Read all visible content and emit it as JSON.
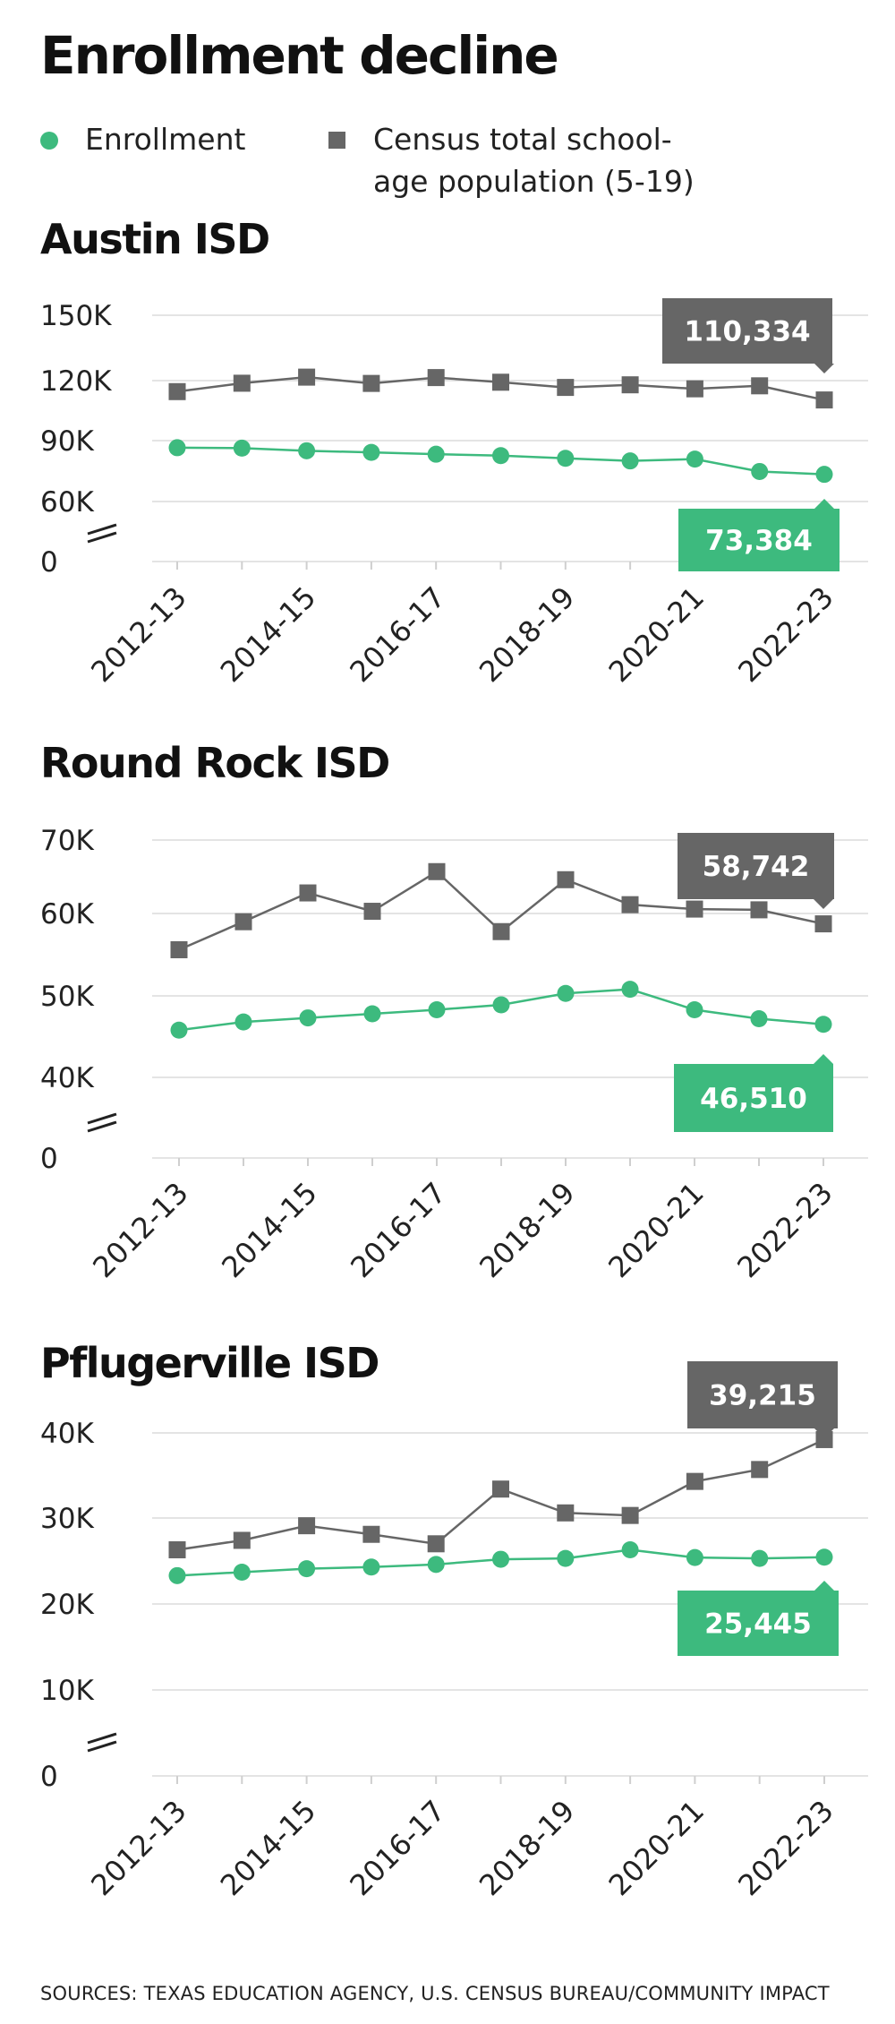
{
  "title": "Enrollment decline",
  "legend": {
    "enrollment": "Enrollment",
    "census": "Census total school-age population (5-19)"
  },
  "colors": {
    "enrollment": "#3dba7e",
    "census": "#666666",
    "grid": "#e4e4e4"
  },
  "sources": "SOURCES: TEXAS EDUCATION AGENCY, U.S. CENSUS BUREAU/COMMUNITY IMPACT",
  "chart_data": [
    {
      "type": "line",
      "title": "Austin ISD",
      "x": [
        "2012-13",
        "2013-14",
        "2014-15",
        "2015-16",
        "2016-17",
        "2017-18",
        "2018-19",
        "2019-20",
        "2020-21",
        "2021-22",
        "2022-23"
      ],
      "x_tick_labels": [
        "2012-13",
        "2014-15",
        "2016-17",
        "2018-19",
        "2020-21",
        "2022-23"
      ],
      "y_ticks": [
        0,
        60000,
        90000,
        120000,
        150000
      ],
      "y_tick_labels": [
        "0",
        "60K",
        "90K",
        "120K",
        "150K"
      ],
      "axis_break": true,
      "series": [
        {
          "name": "Enrollment",
          "marker": "circle",
          "values": [
            86500,
            86300,
            85000,
            84200,
            83300,
            82600,
            81300,
            80000,
            80900,
            74800,
            73384
          ]
        },
        {
          "name": "Census total school-age population (5-19)",
          "marker": "square",
          "values": [
            114500,
            118700,
            121600,
            118600,
            121400,
            119200,
            116600,
            117900,
            115900,
            117400,
            110334
          ]
        }
      ],
      "callouts": {
        "census": "110,334",
        "enrollment": "73,384"
      }
    },
    {
      "type": "line",
      "title": "Round Rock ISD",
      "x": [
        "2012-13",
        "2013-14",
        "2014-15",
        "2015-16",
        "2016-17",
        "2017-18",
        "2018-19",
        "2019-20",
        "2020-21",
        "2021-22",
        "2022-23"
      ],
      "x_tick_labels": [
        "2012-13",
        "2014-15",
        "2016-17",
        "2018-19",
        "2020-21",
        "2022-23"
      ],
      "y_ticks": [
        0,
        40000,
        50000,
        60000,
        70000
      ],
      "y_tick_labels": [
        "0",
        "40K",
        "50K",
        "60K",
        "70K"
      ],
      "axis_break": true,
      "series": [
        {
          "name": "Enrollment",
          "marker": "circle",
          "values": [
            45800,
            46800,
            47300,
            47800,
            48300,
            48900,
            50300,
            50800,
            48300,
            47200,
            46510
          ]
        },
        {
          "name": "Census total school-age population (5-19)",
          "marker": "square",
          "values": [
            55600,
            59000,
            62800,
            60300,
            65700,
            57800,
            64600,
            61200,
            60600,
            60500,
            58742
          ]
        }
      ],
      "callouts": {
        "census": "58,742",
        "enrollment": "46,510"
      }
    },
    {
      "type": "line",
      "title": "Pflugerville ISD",
      "x": [
        "2012-13",
        "2013-14",
        "2014-15",
        "2015-16",
        "2016-17",
        "2017-18",
        "2018-19",
        "2019-20",
        "2020-21",
        "2021-22",
        "2022-23"
      ],
      "x_tick_labels": [
        "2012-13",
        "2014-15",
        "2016-17",
        "2018-19",
        "2020-21",
        "2022-23"
      ],
      "y_ticks": [
        0,
        10000,
        20000,
        30000,
        40000
      ],
      "y_tick_labels": [
        "0",
        "10K",
        "20K",
        "30K",
        "40K"
      ],
      "axis_break": true,
      "series": [
        {
          "name": "Enrollment",
          "marker": "circle",
          "values": [
            23300,
            23700,
            24100,
            24300,
            24600,
            25200,
            25300,
            26300,
            25400,
            25300,
            25445
          ]
        },
        {
          "name": "Census total school-age population (5-19)",
          "marker": "square",
          "values": [
            26300,
            27400,
            29100,
            28100,
            27000,
            33400,
            30600,
            30300,
            34300,
            35700,
            39215
          ]
        }
      ],
      "callouts": {
        "census": "39,215",
        "enrollment": "25,445"
      }
    }
  ]
}
